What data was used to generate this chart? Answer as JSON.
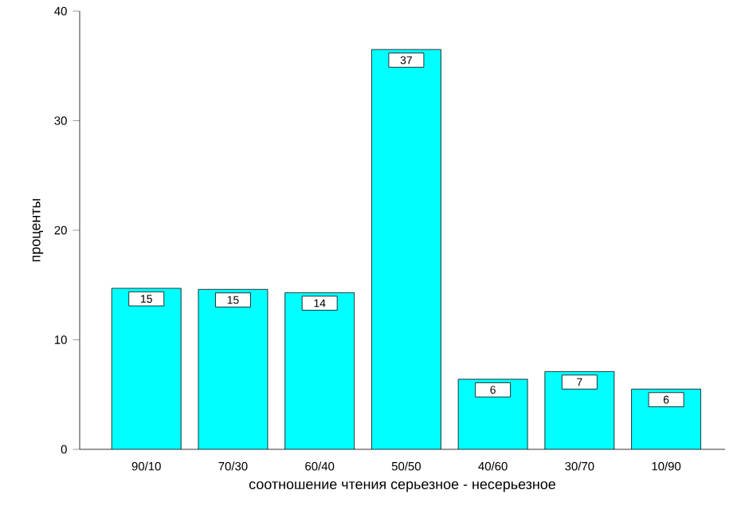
{
  "chart_data": {
    "type": "bar",
    "xlabel": "соотношение чтения серьезное - несерьезное",
    "ylabel": "проценты",
    "categories": [
      "90/10",
      "70/30",
      "60/40",
      "50/50",
      "40/60",
      "30/70",
      "10/90"
    ],
    "values": [
      14.7,
      14.6,
      14.3,
      36.5,
      6.4,
      7.1,
      5.5
    ],
    "value_labels": [
      "15",
      "15",
      "14",
      "37",
      "6",
      "7",
      "6"
    ],
    "color": "#00ffff",
    "ylim": [
      0,
      40
    ],
    "yticks": [
      0,
      10,
      20,
      30,
      40
    ],
    "grid": false
  }
}
